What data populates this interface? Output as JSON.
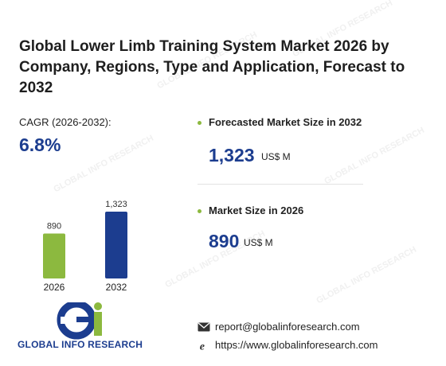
{
  "title": "Global Lower Limb Training System Market 2026 by Company, Regions, Type and Application, Forecast to 2032",
  "cagr": {
    "label": "CAGR (2026-2032):",
    "value": "6.8%"
  },
  "forecast": {
    "label": "Forecasted Market Size in 2032",
    "value": "1,323",
    "unit": "US$ M"
  },
  "current": {
    "label": "Market Size in 2026",
    "value": "890",
    "unit": "US$ M"
  },
  "chart_data": {
    "type": "bar",
    "categories": [
      "2026",
      "2032"
    ],
    "values": [
      890,
      1323
    ],
    "value_labels": [
      "890",
      "1,323"
    ],
    "colors": [
      "#8cb93f",
      "#1c3d8f"
    ],
    "ylim": [
      0,
      1323
    ]
  },
  "logo": {
    "text": "GLOBAL INFO RESEARCH",
    "mark_colors": [
      "#1c3d8f",
      "#8cb93f"
    ]
  },
  "contact": {
    "email": "report@globalinforesearch.com",
    "website": "https://www.globalinforesearch.com"
  },
  "icons": {
    "email": "envelope-icon",
    "web": "globe-e-icon"
  }
}
